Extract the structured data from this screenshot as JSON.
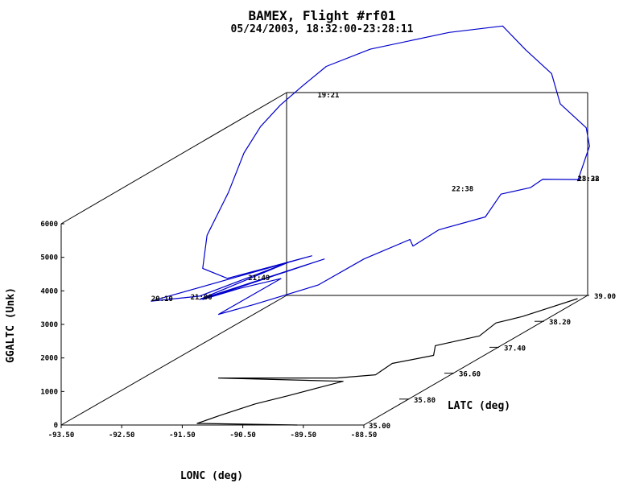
{
  "chart_data": {
    "type": "line",
    "projection": "3d",
    "title": "BAMEX, Flight #rf01",
    "subtitle": "05/24/2003, 18:32:00-23:28:11",
    "xlabel": "LONC (deg)",
    "ylabel": "LATC (deg)",
    "zlabel": "GGALTC (Unk)",
    "xlim": [
      -93.5,
      -88.5
    ],
    "ylim": [
      35.0,
      39.0
    ],
    "zlim": [
      0,
      6000
    ],
    "x_ticks": [
      "-93.50",
      "-92.50",
      "-91.50",
      "-90.50",
      "-89.50",
      "-88.50"
    ],
    "y_ticks": [
      "35.00",
      "35.80",
      "36.60",
      "37.40",
      "38.20",
      "39.00"
    ],
    "z_ticks": [
      "0",
      "1000",
      "2000",
      "3000",
      "4000",
      "5000",
      "6000"
    ],
    "grid": false,
    "colors": {
      "flight_track": "#0000cc",
      "ground_shadow": "#000000",
      "axes": "#000000"
    },
    "time_labels": [
      {
        "text": "18:32",
        "lon": -88.6,
        "lat": 38.9,
        "alt": 3500
      },
      {
        "text": "23:28",
        "lon": -88.6,
        "lat": 38.9,
        "alt": 3500
      },
      {
        "text": "19:21",
        "lon": -92.85,
        "lat": 38.85,
        "alt": 6050
      },
      {
        "text": "20:10",
        "lon": -92.2,
        "lat": 35.2,
        "alt": 3500
      },
      {
        "text": "21:00",
        "lon": -91.55,
        "lat": 35.2,
        "alt": 3550
      },
      {
        "text": "21:49",
        "lon": -91.25,
        "lat": 35.9,
        "alt": 3450
      },
      {
        "text": "22:38",
        "lon": -90.4,
        "lat": 38.6,
        "alt": 3500
      }
    ],
    "series": [
      {
        "style": "3d-track",
        "points": [
          [
            -88.6,
            38.9,
            3500
          ],
          [
            -88.45,
            38.95,
            4500
          ],
          [
            -88.55,
            39.0,
            5000
          ],
          [
            -88.7,
            38.7,
            6000
          ],
          [
            -88.75,
            38.6,
            7000
          ],
          [
            -88.9,
            38.3,
            8000
          ],
          [
            -89.0,
            38.0,
            9000
          ],
          [
            -89.7,
            37.8,
            9000
          ],
          [
            -91.0,
            37.8,
            8500
          ],
          [
            -92.1,
            38.2,
            7600
          ],
          [
            -92.9,
            38.65,
            6600
          ],
          [
            -93.0,
            38.35,
            6300
          ],
          [
            -93.0,
            38.0,
            6000
          ],
          [
            -92.9,
            37.6,
            5600
          ],
          [
            -92.6,
            37.0,
            5000
          ],
          [
            -92.3,
            36.3,
            4400
          ],
          [
            -92.0,
            35.9,
            3800
          ],
          [
            -91.5,
            35.8,
            3600
          ],
          [
            -90.85,
            36.6,
            3500
          ],
          [
            -92.2,
            35.2,
            3500
          ],
          [
            -91.4,
            35.2,
            3650
          ],
          [
            -90.95,
            36.3,
            3600
          ],
          [
            -91.4,
            35.2,
            3550
          ],
          [
            -90.55,
            36.5,
            3500
          ],
          [
            -91.3,
            35.15,
            3600
          ],
          [
            -91.2,
            35.7,
            3400
          ],
          [
            -90.8,
            36.0,
            3400
          ],
          [
            -90.9,
            35.0,
            3300
          ],
          [
            -90.6,
            35.3,
            3300
          ],
          [
            -90.0,
            35.8,
            3400
          ],
          [
            -89.8,
            36.4,
            3600
          ],
          [
            -89.6,
            37.0,
            3600
          ],
          [
            -89.55,
            37.0,
            3400
          ],
          [
            -89.4,
            37.3,
            3600
          ],
          [
            -89.1,
            37.8,
            3500
          ],
          [
            -89.4,
            38.4,
            3600
          ],
          [
            -89.1,
            38.6,
            3600
          ],
          [
            -88.85,
            38.55,
            3900
          ],
          [
            -88.55,
            38.85,
            3600
          ],
          [
            -88.6,
            38.9,
            3500
          ]
        ]
      },
      {
        "style": "ground-shadow",
        "points": [
          [
            -88.6,
            38.9,
            0
          ],
          [
            -89.0,
            38.35,
            0
          ],
          [
            -89.25,
            38.15,
            0
          ],
          [
            -89.15,
            37.75,
            0
          ],
          [
            -89.6,
            37.45,
            0
          ],
          [
            -89.35,
            37.15,
            0
          ],
          [
            -89.8,
            36.9,
            0
          ],
          [
            -89.75,
            36.55,
            0
          ],
          [
            -90.3,
            36.45,
            0
          ],
          [
            -92.25,
            36.45,
            0
          ],
          [
            -90.1,
            36.35,
            0
          ],
          [
            -90.6,
            35.9,
            0
          ],
          [
            -90.9,
            35.65,
            0
          ],
          [
            -91.15,
            35.3,
            0
          ],
          [
            -91.3,
            35.05,
            0
          ],
          [
            -89.6,
            35.0,
            0
          ]
        ]
      }
    ]
  }
}
